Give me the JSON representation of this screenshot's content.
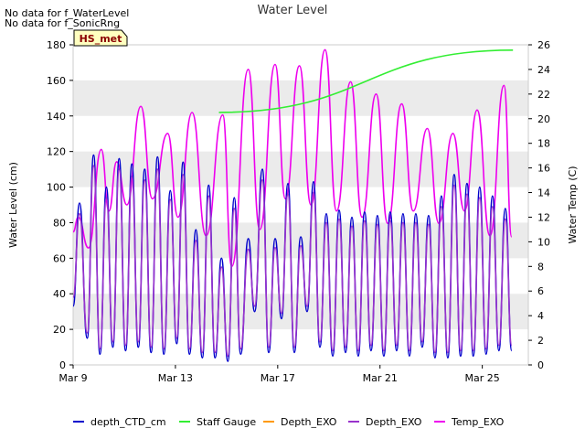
{
  "notes": [
    "No data for f_WaterLevel",
    "No data for f_SonicRng"
  ],
  "station_badge": "HS_met",
  "colors": {
    "depth_ctd": "#0000cc",
    "staff_gauge": "#33ee33",
    "depth_exo_1": "#ff9900",
    "depth_exo_2": "#9933cc",
    "temp_exo": "#ee00ee",
    "band": "#ebebeb",
    "badge_bg": "#ffffc0",
    "badge_text": "#8b0000"
  },
  "chart_data": {
    "type": "line",
    "title": "Water Level",
    "xlabel": "",
    "ylabel": "Water Level (cm)",
    "y2label": "Water Temp (C)",
    "xlim": [
      0,
      17.8
    ],
    "ylim": [
      0,
      180
    ],
    "y2lim": [
      0,
      26
    ],
    "x_unit": "days since Mar 9",
    "x_ticks": [
      {
        "value": 0,
        "label": "Mar 9"
      },
      {
        "value": 4,
        "label": "Mar 13"
      },
      {
        "value": 8,
        "label": "Mar 17"
      },
      {
        "value": 12,
        "label": "Mar 21"
      },
      {
        "value": 16,
        "label": "Mar 25"
      }
    ],
    "y_ticks": [
      {
        "value": 0,
        "label": "0"
      },
      {
        "value": 20,
        "label": "20"
      },
      {
        "value": 40,
        "label": "40"
      },
      {
        "value": 60,
        "label": "60"
      },
      {
        "value": 80,
        "label": "80"
      },
      {
        "value": 100,
        "label": "100"
      },
      {
        "value": 120,
        "label": "120"
      },
      {
        "value": 140,
        "label": "140"
      },
      {
        "value": 160,
        "label": "160"
      },
      {
        "value": 180,
        "label": "180"
      }
    ],
    "y2_ticks": [
      {
        "value": 0,
        "label": "0"
      },
      {
        "value": 2,
        "label": "2"
      },
      {
        "value": 4,
        "label": "4"
      },
      {
        "value": 6,
        "label": "6"
      },
      {
        "value": 8,
        "label": "8"
      },
      {
        "value": 10,
        "label": "10"
      },
      {
        "value": 12,
        "label": "12"
      },
      {
        "value": 14,
        "label": "14"
      },
      {
        "value": 16,
        "label": "16"
      },
      {
        "value": 18,
        "label": "18"
      },
      {
        "value": 20,
        "label": "20"
      },
      {
        "value": 22,
        "label": "22"
      },
      {
        "value": 24,
        "label": "24"
      },
      {
        "value": 26,
        "label": "26"
      }
    ],
    "legend": [
      "depth_CTD_cm",
      "Staff Gauge",
      "Depth_EXO",
      "Depth_EXO",
      "Temp_EXO"
    ],
    "series": [
      {
        "name": "depth_CTD_cm",
        "axis": "left",
        "color": "#0000cc",
        "peaks": [
          [
            0.25,
            91
          ],
          [
            0.8,
            118
          ],
          [
            1.3,
            100
          ],
          [
            1.8,
            116
          ],
          [
            2.3,
            113
          ],
          [
            2.8,
            110
          ],
          [
            3.3,
            117
          ],
          [
            3.8,
            98
          ],
          [
            4.3,
            114
          ],
          [
            4.8,
            76
          ],
          [
            5.3,
            101
          ],
          [
            5.8,
            60
          ],
          [
            6.3,
            94
          ],
          [
            6.85,
            71
          ],
          [
            7.4,
            110
          ],
          [
            7.9,
            71
          ],
          [
            8.4,
            102
          ],
          [
            8.9,
            72
          ],
          [
            9.4,
            103
          ],
          [
            9.9,
            85
          ],
          [
            10.4,
            87
          ],
          [
            10.9,
            83
          ],
          [
            11.4,
            86
          ],
          [
            11.9,
            84
          ],
          [
            12.4,
            86
          ],
          [
            12.9,
            85
          ],
          [
            13.4,
            85
          ],
          [
            13.9,
            84
          ],
          [
            14.4,
            95
          ],
          [
            14.9,
            107
          ],
          [
            15.4,
            102
          ],
          [
            15.9,
            100
          ],
          [
            16.4,
            95
          ],
          [
            16.9,
            88
          ]
        ],
        "troughs": [
          [
            0.0,
            33
          ],
          [
            0.55,
            15
          ],
          [
            1.05,
            6
          ],
          [
            1.55,
            10
          ],
          [
            2.05,
            8
          ],
          [
            2.55,
            10
          ],
          [
            3.05,
            7
          ],
          [
            3.55,
            6
          ],
          [
            4.05,
            12
          ],
          [
            4.55,
            6
          ],
          [
            5.05,
            4
          ],
          [
            5.55,
            4
          ],
          [
            6.05,
            2
          ],
          [
            6.55,
            6
          ],
          [
            7.1,
            30
          ],
          [
            7.65,
            7
          ],
          [
            8.15,
            26
          ],
          [
            8.65,
            7
          ],
          [
            9.15,
            30
          ],
          [
            9.65,
            10
          ],
          [
            10.15,
            5
          ],
          [
            10.65,
            7
          ],
          [
            11.15,
            5
          ],
          [
            11.65,
            8
          ],
          [
            12.15,
            5
          ],
          [
            12.65,
            8
          ],
          [
            13.15,
            5
          ],
          [
            13.65,
            10
          ],
          [
            14.15,
            4
          ],
          [
            14.65,
            4
          ],
          [
            15.15,
            5
          ],
          [
            15.65,
            5
          ],
          [
            16.15,
            6
          ],
          [
            16.65,
            8
          ],
          [
            17.15,
            8
          ]
        ]
      },
      {
        "name": "Staff Gauge",
        "axis": "left",
        "color": "#33ee33",
        "x": [
          5.7,
          17.2
        ],
        "values": [
          142,
          177
        ]
      },
      {
        "name": "Depth_EXO",
        "axis": "left",
        "color": "#ff9900",
        "x": [],
        "values": []
      },
      {
        "name": "Depth_EXO",
        "axis": "left",
        "color": "#9933cc",
        "peaks": [
          [
            0.25,
            85
          ],
          [
            0.8,
            112
          ],
          [
            1.3,
            94
          ],
          [
            1.8,
            110
          ],
          [
            2.3,
            106
          ],
          [
            2.8,
            104
          ],
          [
            3.3,
            110
          ],
          [
            3.8,
            93
          ],
          [
            4.3,
            107
          ],
          [
            4.8,
            70
          ],
          [
            5.3,
            95
          ],
          [
            5.8,
            55
          ],
          [
            6.3,
            88
          ],
          [
            6.85,
            65
          ],
          [
            7.4,
            104
          ],
          [
            7.9,
            66
          ],
          [
            8.4,
            96
          ],
          [
            8.9,
            67
          ],
          [
            9.4,
            97
          ],
          [
            9.9,
            80
          ],
          [
            10.4,
            82
          ],
          [
            10.9,
            78
          ],
          [
            11.4,
            81
          ],
          [
            11.9,
            79
          ],
          [
            12.4,
            81
          ],
          [
            12.9,
            80
          ],
          [
            13.4,
            80
          ],
          [
            13.9,
            79
          ],
          [
            14.4,
            89
          ],
          [
            14.9,
            101
          ],
          [
            15.4,
            96
          ],
          [
            15.9,
            94
          ],
          [
            16.4,
            89
          ],
          [
            16.9,
            82
          ]
        ],
        "troughs": [
          [
            0.0,
            38
          ],
          [
            0.55,
            18
          ],
          [
            1.05,
            9
          ],
          [
            1.55,
            13
          ],
          [
            2.05,
            11
          ],
          [
            2.55,
            13
          ],
          [
            3.05,
            10
          ],
          [
            3.55,
            9
          ],
          [
            4.05,
            15
          ],
          [
            4.55,
            9
          ],
          [
            5.05,
            7
          ],
          [
            5.55,
            7
          ],
          [
            6.05,
            5
          ],
          [
            6.55,
            9
          ],
          [
            7.1,
            33
          ],
          [
            7.65,
            10
          ],
          [
            8.15,
            29
          ],
          [
            8.65,
            10
          ],
          [
            9.15,
            33
          ],
          [
            9.65,
            13
          ],
          [
            10.15,
            8
          ],
          [
            10.65,
            10
          ],
          [
            11.15,
            8
          ],
          [
            11.65,
            11
          ],
          [
            12.15,
            8
          ],
          [
            12.65,
            11
          ],
          [
            13.15,
            8
          ],
          [
            13.65,
            13
          ],
          [
            14.15,
            7
          ],
          [
            14.65,
            7
          ],
          [
            15.15,
            8
          ],
          [
            15.65,
            8
          ],
          [
            16.15,
            9
          ],
          [
            16.65,
            11
          ],
          [
            17.15,
            11
          ]
        ]
      },
      {
        "name": "Temp_EXO",
        "axis": "right",
        "color": "#ee00ee",
        "peaks": [
          [
            0.2,
            12
          ],
          [
            1.1,
            17.5
          ],
          [
            1.7,
            16.5
          ],
          [
            2.65,
            21
          ],
          [
            3.7,
            18.8
          ],
          [
            4.65,
            20.5
          ],
          [
            5.85,
            20.3
          ],
          [
            6.85,
            24
          ],
          [
            7.9,
            24.4
          ],
          [
            8.85,
            24.3
          ],
          [
            9.85,
            25.6
          ],
          [
            10.85,
            23
          ],
          [
            11.85,
            22
          ],
          [
            12.85,
            21.2
          ],
          [
            13.85,
            19.2
          ],
          [
            14.85,
            18.8
          ],
          [
            15.8,
            20.7
          ],
          [
            16.85,
            22.7
          ]
        ],
        "troughs": [
          [
            0.0,
            10.8
          ],
          [
            0.6,
            9.5
          ],
          [
            1.4,
            12.5
          ],
          [
            2.1,
            13
          ],
          [
            3.1,
            13.5
          ],
          [
            4.1,
            12
          ],
          [
            5.2,
            10.5
          ],
          [
            6.2,
            8
          ],
          [
            7.3,
            11
          ],
          [
            8.3,
            13.5
          ],
          [
            9.3,
            13
          ],
          [
            10.3,
            12.5
          ],
          [
            11.3,
            12
          ],
          [
            12.3,
            11.5
          ],
          [
            13.3,
            12.5
          ],
          [
            14.3,
            11.5
          ],
          [
            15.3,
            12.5
          ],
          [
            16.3,
            10.5
          ],
          [
            17.15,
            10.4
          ]
        ]
      }
    ]
  }
}
